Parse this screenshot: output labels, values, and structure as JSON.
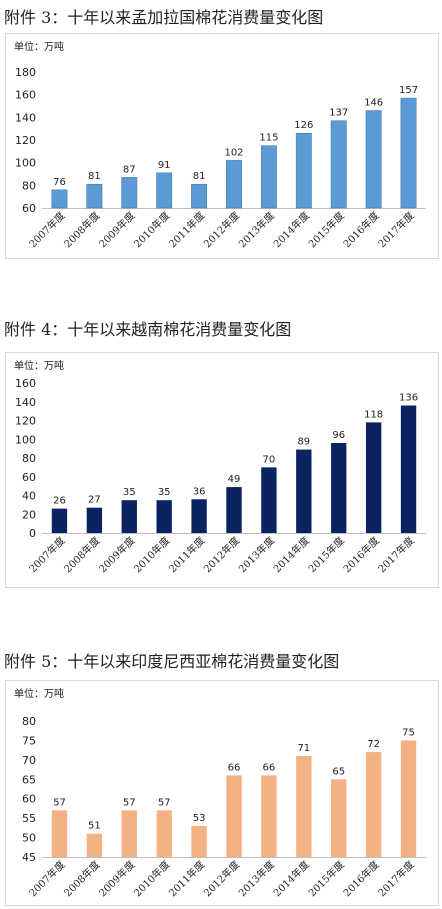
{
  "headings": [
    "附件 3：十年以来孟加拉国棉花消费量变化图",
    "附件 4：十年以来越南棉花消费量变化图",
    "附件 5：十年以来印度尼西亚棉花消费量变化图"
  ],
  "chart_data": [
    {
      "type": "bar",
      "unit_label": "单位：万吨",
      "color": "#5b9bd5",
      "categories": [
        "2007年度",
        "2008年度",
        "2009年度",
        "2010年度",
        "2011年度",
        "2012年度",
        "2013年度",
        "2014年度",
        "2015年度",
        "2016年度",
        "2017年度"
      ],
      "values": [
        76,
        81,
        87,
        91,
        81,
        102,
        115,
        126,
        137,
        146,
        157
      ],
      "ylim": [
        60,
        180
      ],
      "yticks": [
        60,
        80,
        100,
        120,
        140,
        160,
        180
      ],
      "grid": false
    },
    {
      "type": "bar",
      "unit_label": "单位：万吨",
      "color": "#0b2461",
      "categories": [
        "2007年度",
        "2008年度",
        "2009年度",
        "2010年度",
        "2011年度",
        "2012年度",
        "2013年度",
        "2014年度",
        "2015年度",
        "2016年度",
        "2017年度"
      ],
      "values": [
        26,
        27,
        35,
        35,
        36,
        49,
        70,
        89,
        96,
        118,
        136
      ],
      "ylim": [
        0,
        160
      ],
      "yticks": [
        0,
        20,
        40,
        60,
        80,
        100,
        120,
        140,
        160
      ],
      "grid": false
    },
    {
      "type": "bar",
      "unit_label": "单位：万吨",
      "color": "#f4b183",
      "categories": [
        "2007年度",
        "2008年度",
        "2009年度",
        "2010年度",
        "2011年度",
        "2012年度",
        "2013年度",
        "2014年度",
        "2015年度",
        "2016年度",
        "2017年度"
      ],
      "values": [
        57,
        51,
        57,
        57,
        53,
        66,
        66,
        71,
        65,
        72,
        75
      ],
      "ylim": [
        45,
        80
      ],
      "yticks": [
        45,
        50,
        55,
        60,
        65,
        70,
        75,
        80
      ],
      "grid": false
    }
  ]
}
